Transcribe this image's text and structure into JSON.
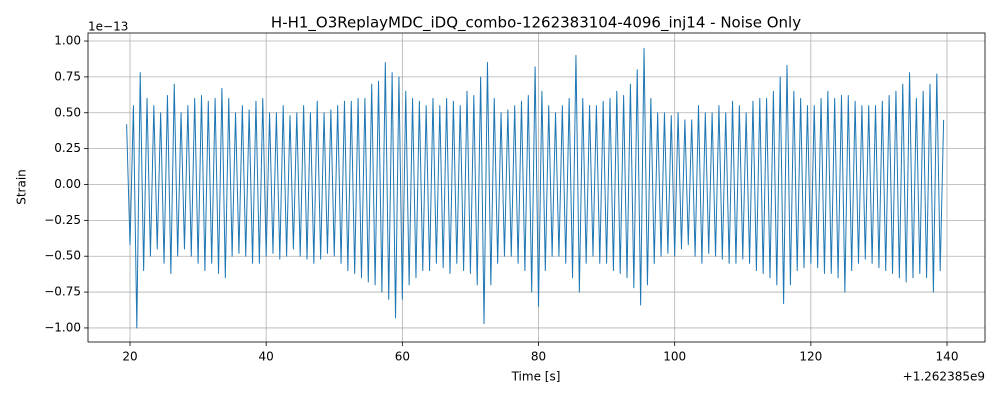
{
  "chart_data": {
    "type": "line",
    "title": "H-H1_O3ReplayMDC_iDQ_combo-1262383104-4096_inj14 - Noise Only",
    "x_label": "Time [s]",
    "y_label": "Strain",
    "x_offset_label": "+1.262385e9",
    "y_offset_label": "1e−13",
    "xlim": [
      13.83,
      145.58
    ],
    "ylim": [
      -1.098,
      1.056
    ],
    "xticks": [
      20,
      40,
      60,
      80,
      100,
      120,
      140
    ],
    "yticks": [
      {
        "value": -1,
        "label": "−1.00"
      },
      {
        "value": -0.75,
        "label": "−0.75"
      },
      {
        "value": -0.5,
        "label": "−0.50"
      },
      {
        "value": -0.25,
        "label": "−0.25"
      },
      {
        "value": 0,
        "label": "0.00"
      },
      {
        "value": 0.25,
        "label": "0.25"
      },
      {
        "value": 0.5,
        "label": "0.50"
      },
      {
        "value": 0.75,
        "label": "0.75"
      },
      {
        "value": 1,
        "label": "1.00"
      }
    ],
    "grid": true,
    "x": [
      19.5,
      20,
      20.5,
      21,
      21.5,
      22,
      22.5,
      23,
      23.5,
      24,
      24.5,
      25,
      25.5,
      26,
      26.5,
      27,
      27.5,
      28,
      28.5,
      29,
      29.5,
      30,
      30.5,
      31,
      31.5,
      32,
      32.5,
      33,
      33.5,
      34,
      34.5,
      35,
      35.5,
      36,
      36.5,
      37,
      37.5,
      38,
      38.5,
      39,
      39.5,
      40,
      40.5,
      41,
      41.5,
      42,
      42.5,
      43,
      43.5,
      44,
      44.5,
      45,
      45.5,
      46,
      46.5,
      47,
      47.5,
      48,
      48.5,
      49,
      49.5,
      50,
      50.5,
      51,
      51.5,
      52,
      52.5,
      53,
      53.5,
      54,
      54.5,
      55,
      55.5,
      56,
      56.5,
      57,
      57.5,
      58,
      58.5,
      59,
      59.5,
      60,
      60.5,
      61,
      61.5,
      62,
      62.5,
      63,
      63.5,
      64,
      64.5,
      65,
      65.5,
      66,
      66.5,
      67,
      67.5,
      68,
      68.5,
      69,
      69.5,
      70,
      70.5,
      71,
      71.5,
      72,
      72.5,
      73,
      73.5,
      74,
      74.5,
      75,
      75.5,
      76,
      76.5,
      77,
      77.5,
      78,
      78.5,
      79,
      79.5,
      80,
      80.5,
      81,
      81.5,
      82,
      82.5,
      83,
      83.5,
      84,
      84.5,
      85,
      85.5,
      86,
      86.5,
      87,
      87.5,
      88,
      88.5,
      89,
      89.5,
      90,
      90.5,
      91,
      91.5,
      92,
      92.5,
      93,
      93.5,
      94,
      94.5,
      95,
      95.5,
      96,
      96.5,
      97,
      97.5,
      98,
      98.5,
      99,
      99.5,
      100,
      100.5,
      101,
      101.5,
      102,
      102.5,
      103,
      103.5,
      104,
      104.5,
      105,
      105.5,
      106,
      106.5,
      107,
      107.5,
      108,
      108.5,
      109,
      109.5,
      110,
      110.5,
      111,
      111.5,
      112,
      112.5,
      113,
      113.5,
      114,
      114.5,
      115,
      115.5,
      116,
      116.5,
      117,
      117.5,
      118,
      118.5,
      119,
      119.5,
      120,
      120.5,
      121,
      121.5,
      122,
      122.5,
      123,
      123.5,
      124,
      124.5,
      125,
      125.5,
      126,
      126.5,
      127,
      127.5,
      128,
      128.5,
      129,
      129.5,
      130,
      130.5,
      131,
      131.5,
      132,
      132.5,
      133,
      133.5,
      134,
      134.5,
      135,
      135.5,
      136,
      136.5,
      137,
      137.5,
      138,
      138.5,
      139,
      139.5
    ],
    "series": [
      {
        "name": "Strain",
        "color": "#1f77b4",
        "values": [
          0.42,
          -0.42,
          0.55,
          -1.0,
          0.78,
          -0.6,
          0.6,
          -0.5,
          0.55,
          -0.45,
          0.5,
          -0.55,
          0.62,
          -0.62,
          0.7,
          -0.5,
          0.5,
          -0.45,
          0.55,
          -0.5,
          0.6,
          -0.55,
          0.62,
          -0.6,
          0.58,
          -0.55,
          0.6,
          -0.62,
          0.67,
          -0.65,
          0.6,
          -0.5,
          0.5,
          -0.48,
          0.55,
          -0.5,
          0.52,
          -0.55,
          0.58,
          -0.55,
          0.6,
          -0.5,
          0.5,
          -0.48,
          0.5,
          -0.52,
          0.55,
          -0.5,
          0.48,
          -0.45,
          0.5,
          -0.5,
          0.55,
          -0.52,
          0.5,
          -0.55,
          0.58,
          -0.52,
          0.5,
          -0.48,
          0.52,
          -0.5,
          0.55,
          -0.55,
          0.58,
          -0.6,
          0.58,
          -0.62,
          0.6,
          -0.65,
          0.6,
          -0.68,
          0.7,
          -0.7,
          0.72,
          -0.75,
          0.85,
          -0.8,
          0.78,
          -0.93,
          0.75,
          -0.8,
          0.65,
          -0.7,
          0.6,
          -0.65,
          0.58,
          -0.6,
          0.55,
          -0.6,
          0.6,
          -0.55,
          0.55,
          -0.58,
          0.6,
          -0.62,
          0.58,
          -0.55,
          0.55,
          -0.6,
          0.65,
          -0.62,
          0.62,
          -0.7,
          0.75,
          -0.97,
          0.85,
          -0.7,
          0.6,
          -0.55,
          0.5,
          -0.5,
          0.52,
          -0.5,
          0.55,
          -0.55,
          0.58,
          -0.6,
          0.62,
          -0.75,
          0.82,
          -0.85,
          0.65,
          -0.6,
          0.55,
          -0.5,
          0.5,
          -0.5,
          0.55,
          -0.55,
          0.6,
          -0.65,
          0.9,
          -0.75,
          0.6,
          -0.55,
          0.55,
          -0.5,
          0.55,
          -0.55,
          0.58,
          -0.55,
          0.6,
          -0.6,
          0.65,
          -0.62,
          0.62,
          -0.65,
          0.7,
          -0.72,
          0.8,
          -0.84,
          0.95,
          -0.7,
          0.6,
          -0.55,
          0.5,
          -0.5,
          0.5,
          -0.48,
          0.48,
          -0.5,
          0.5,
          -0.45,
          0.45,
          -0.42,
          0.45,
          -0.5,
          0.55,
          -0.55,
          0.5,
          -0.48,
          0.5,
          -0.5,
          0.55,
          -0.52,
          0.5,
          -0.55,
          0.58,
          -0.55,
          0.55,
          -0.52,
          0.5,
          -0.55,
          0.58,
          -0.6,
          0.6,
          -0.62,
          0.6,
          -0.65,
          0.65,
          -0.7,
          0.75,
          -0.83,
          0.83,
          -0.7,
          0.65,
          -0.6,
          0.6,
          -0.58,
          0.55,
          -0.55,
          0.55,
          -0.58,
          0.6,
          -0.62,
          0.65,
          -0.62,
          0.6,
          -0.65,
          0.62,
          -0.75,
          0.62,
          -0.6,
          0.58,
          -0.55,
          0.55,
          -0.52,
          0.55,
          -0.55,
          0.55,
          -0.58,
          0.58,
          -0.6,
          0.62,
          -0.62,
          0.65,
          -0.65,
          0.7,
          -0.68,
          0.78,
          -0.65,
          0.6,
          -0.62,
          0.65,
          -0.65,
          0.7,
          -0.75,
          0.77,
          -0.6,
          0.45
        ]
      }
    ]
  }
}
